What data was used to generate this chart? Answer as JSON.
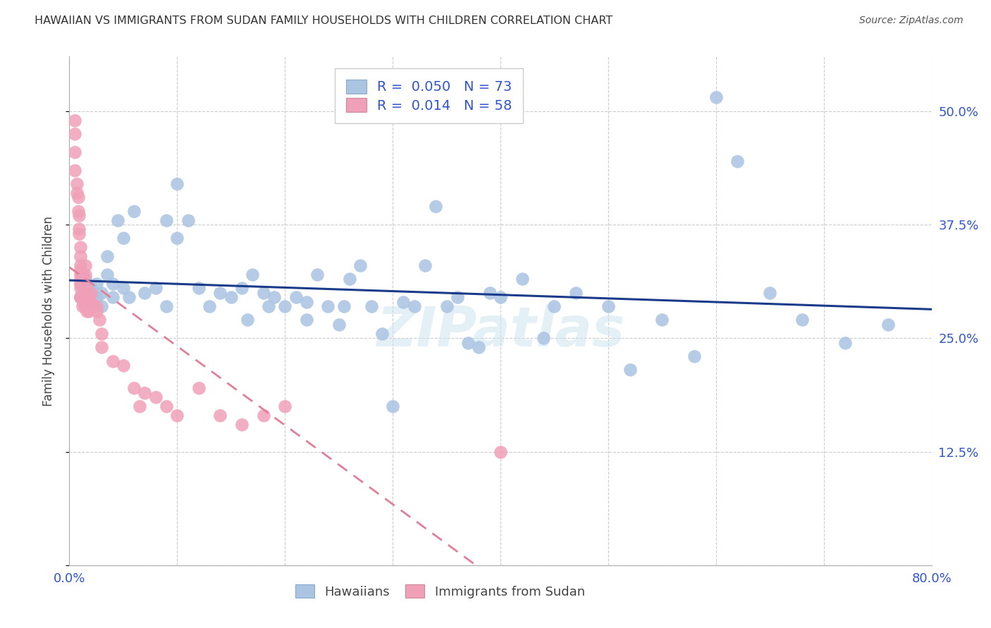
{
  "title": "HAWAIIAN VS IMMIGRANTS FROM SUDAN FAMILY HOUSEHOLDS WITH CHILDREN CORRELATION CHART",
  "source": "Source: ZipAtlas.com",
  "ylabel": "Family Households with Children",
  "xlim": [
    0.0,
    0.8
  ],
  "ylim": [
    0.0,
    0.56
  ],
  "yticks": [
    0.0,
    0.125,
    0.25,
    0.375,
    0.5
  ],
  "ytick_labels_right": [
    "",
    "12.5%",
    "25.0%",
    "37.5%",
    "50.0%"
  ],
  "xticks": [
    0.0,
    0.1,
    0.2,
    0.3,
    0.4,
    0.5,
    0.6,
    0.7,
    0.8
  ],
  "xtick_labels": [
    "0.0%",
    "",
    "",
    "",
    "",
    "",
    "",
    "",
    "80.0%"
  ],
  "hawaiian_color": "#aac4e2",
  "sudan_color": "#f0a0b8",
  "hawaii_R": 0.05,
  "hawaii_N": 73,
  "sudan_R": 0.014,
  "sudan_N": 58,
  "legend_label_1": "Hawaiians",
  "legend_label_2": "Immigrants from Sudan",
  "watermark": "ZIPatlas",
  "trend_blue": "#1a3a8a",
  "trend_pink": "#e08098",
  "hawaiian_x": [
    0.01,
    0.01,
    0.015,
    0.015,
    0.02,
    0.02,
    0.025,
    0.025,
    0.03,
    0.03,
    0.035,
    0.035,
    0.04,
    0.04,
    0.045,
    0.05,
    0.05,
    0.055,
    0.06,
    0.07,
    0.08,
    0.09,
    0.09,
    0.1,
    0.1,
    0.11,
    0.12,
    0.13,
    0.14,
    0.15,
    0.16,
    0.165,
    0.17,
    0.18,
    0.185,
    0.19,
    0.2,
    0.21,
    0.22,
    0.22,
    0.23,
    0.24,
    0.25,
    0.255,
    0.26,
    0.27,
    0.28,
    0.29,
    0.3,
    0.31,
    0.32,
    0.33,
    0.34,
    0.35,
    0.36,
    0.37,
    0.38,
    0.39,
    0.4,
    0.42,
    0.44,
    0.45,
    0.47,
    0.5,
    0.52,
    0.55,
    0.58,
    0.6,
    0.62,
    0.65,
    0.68,
    0.72,
    0.76
  ],
  "hawaiian_y": [
    0.295,
    0.31,
    0.3,
    0.315,
    0.29,
    0.305,
    0.31,
    0.295,
    0.285,
    0.3,
    0.32,
    0.34,
    0.295,
    0.31,
    0.38,
    0.36,
    0.305,
    0.295,
    0.39,
    0.3,
    0.305,
    0.285,
    0.38,
    0.36,
    0.42,
    0.38,
    0.305,
    0.285,
    0.3,
    0.295,
    0.305,
    0.27,
    0.32,
    0.3,
    0.285,
    0.295,
    0.285,
    0.295,
    0.27,
    0.29,
    0.32,
    0.285,
    0.265,
    0.285,
    0.315,
    0.33,
    0.285,
    0.255,
    0.175,
    0.29,
    0.285,
    0.33,
    0.395,
    0.285,
    0.295,
    0.245,
    0.24,
    0.3,
    0.295,
    0.315,
    0.25,
    0.285,
    0.3,
    0.285,
    0.215,
    0.27,
    0.23,
    0.515,
    0.445,
    0.3,
    0.27,
    0.245,
    0.265
  ],
  "sudan_x": [
    0.005,
    0.005,
    0.005,
    0.005,
    0.007,
    0.007,
    0.008,
    0.008,
    0.009,
    0.009,
    0.009,
    0.01,
    0.01,
    0.01,
    0.01,
    0.01,
    0.01,
    0.01,
    0.01,
    0.01,
    0.01,
    0.012,
    0.012,
    0.012,
    0.012,
    0.013,
    0.013,
    0.015,
    0.015,
    0.015,
    0.015,
    0.015,
    0.016,
    0.017,
    0.018,
    0.018,
    0.02,
    0.02,
    0.022,
    0.025,
    0.025,
    0.028,
    0.03,
    0.03,
    0.04,
    0.05,
    0.06,
    0.065,
    0.07,
    0.08,
    0.09,
    0.1,
    0.12,
    0.14,
    0.16,
    0.18,
    0.2,
    0.4
  ],
  "sudan_y": [
    0.475,
    0.49,
    0.455,
    0.435,
    0.41,
    0.42,
    0.39,
    0.405,
    0.37,
    0.385,
    0.365,
    0.35,
    0.295,
    0.305,
    0.315,
    0.325,
    0.33,
    0.34,
    0.295,
    0.31,
    0.32,
    0.285,
    0.295,
    0.31,
    0.32,
    0.29,
    0.3,
    0.285,
    0.295,
    0.305,
    0.32,
    0.33,
    0.28,
    0.295,
    0.28,
    0.295,
    0.29,
    0.3,
    0.285,
    0.28,
    0.285,
    0.27,
    0.255,
    0.24,
    0.225,
    0.22,
    0.195,
    0.175,
    0.19,
    0.185,
    0.175,
    0.165,
    0.195,
    0.165,
    0.155,
    0.165,
    0.175,
    0.125
  ]
}
